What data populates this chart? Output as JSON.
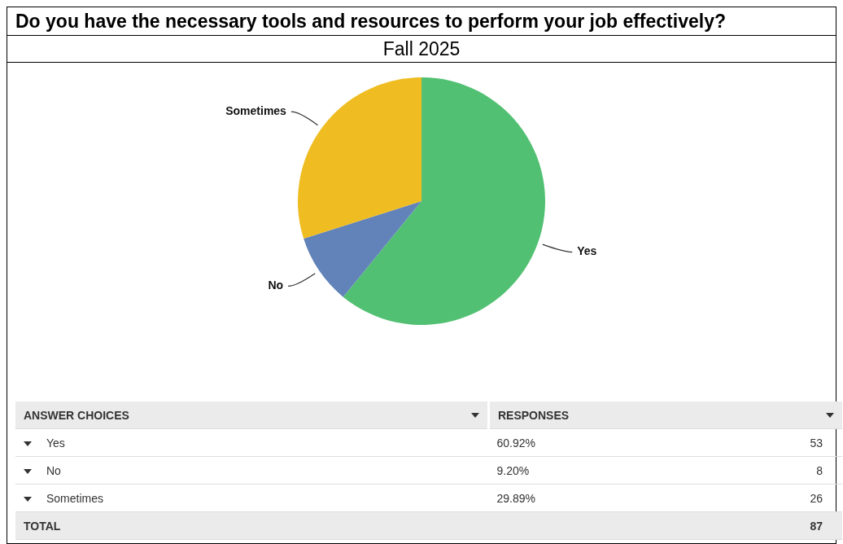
{
  "chart_data": {
    "type": "pie",
    "title": "Do you have the necessary tools and resources to perform your job effectively?",
    "subtitle": "Fall 2025",
    "categories": [
      "Yes",
      "No",
      "Sometimes"
    ],
    "values": [
      60.92,
      9.2,
      29.89
    ],
    "colors": [
      "#52c072",
      "#6283b9",
      "#efbd22"
    ],
    "totals": [
      "87"
    ],
    "annotations": [
      "ANSWER CHOICES",
      "RESPONSES",
      "60.92%",
      "53",
      "9.20%",
      "8",
      "29.89%",
      "26",
      "TOTAL"
    ],
    "legend": false
  }
}
